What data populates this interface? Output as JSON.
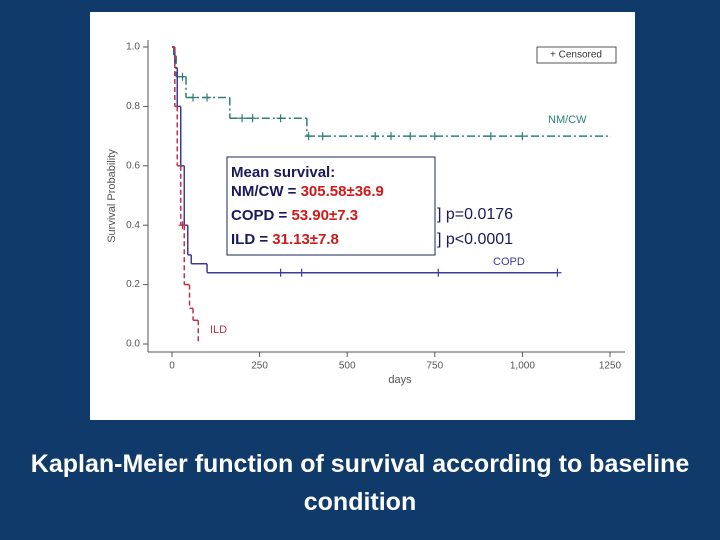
{
  "chart_data": {
    "type": "step",
    "xlabel": "days",
    "ylabel": "Survival Probability",
    "xlim": [
      0,
      1250
    ],
    "ylim": [
      0,
      1
    ],
    "xticks": [
      0,
      250,
      500,
      750,
      {
        "value": 1000,
        "label": "1,000"
      },
      1250
    ],
    "yticks": [
      {
        "value": 0,
        "label": "0.0"
      },
      {
        "value": 0.2,
        "label": "0.2"
      },
      {
        "value": 0.4,
        "label": "0.4"
      },
      {
        "value": 0.6,
        "label": "0.6"
      },
      {
        "value": 0.8,
        "label": "0.8"
      },
      {
        "value": 1,
        "label": "1.0"
      }
    ],
    "legend": "+ Censored",
    "series": [
      {
        "name": "NM/CW",
        "color": "#2f7f74",
        "dash": "8 3 2 3",
        "x": [
          0,
          5,
          12,
          40,
          165,
          385,
          1250
        ],
        "values": [
          1,
          0.97,
          0.9,
          0.83,
          0.76,
          0.7,
          0.7
        ],
        "censored_x": [
          30,
          60,
          100,
          200,
          230,
          310,
          390,
          430,
          580,
          625,
          680,
          750,
          910,
          1000
        ]
      },
      {
        "name": "COPD",
        "color": "#3b3b9c",
        "dash": "",
        "x": [
          0,
          8,
          15,
          25,
          35,
          45,
          55,
          100,
          1100
        ],
        "values": [
          1,
          0.93,
          0.8,
          0.6,
          0.4,
          0.3,
          0.27,
          0.24,
          0.24
        ],
        "censored_x": [
          310,
          370,
          760,
          1100
        ]
      },
      {
        "name": "ILD",
        "color": "#c0304a",
        "dash": "5 3",
        "x": [
          0,
          8,
          15,
          25,
          35,
          50,
          60,
          75
        ],
        "values": [
          1,
          0.8,
          0.6,
          0.4,
          0.2,
          0.12,
          0.08,
          0
        ],
        "censored_x": [
          30
        ]
      }
    ],
    "annotations": {
      "mean_title": "Mean survival:",
      "rows": [
        {
          "label": "NM/CW = ",
          "value": "305.58±36.9"
        },
        {
          "label": "COPD = ",
          "value": "53.90±7.3"
        },
        {
          "label": "ILD = ",
          "value": "31.13±7.8"
        }
      ],
      "p1": "] p=0.0176",
      "p2": "] p<0.0001"
    },
    "caption": "Kaplan-Meier function of survival according to baseline condition"
  }
}
